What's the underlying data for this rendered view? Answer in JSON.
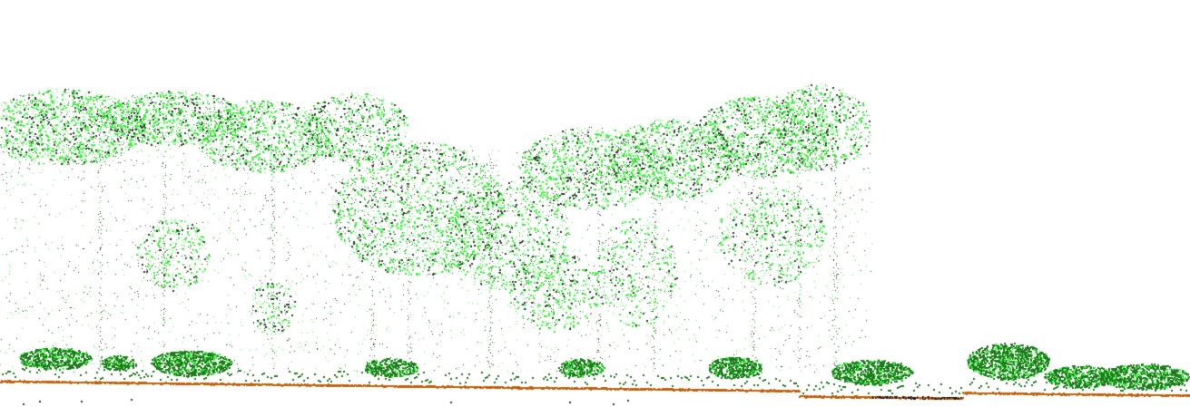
{
  "view": {
    "background_color": "#ffffff",
    "border_color": "#5fc4c4"
  },
  "classes": [
    {
      "id": "ground",
      "color": "#c0620e"
    },
    {
      "id": "ground-edge",
      "color": "#1a1a1a"
    },
    {
      "id": "low-vegetation",
      "color": "#1e7a1e"
    },
    {
      "id": "high-vegetation",
      "color": "#3ef03e"
    },
    {
      "id": "unclassified",
      "color": "#3a3a3a"
    }
  ]
}
